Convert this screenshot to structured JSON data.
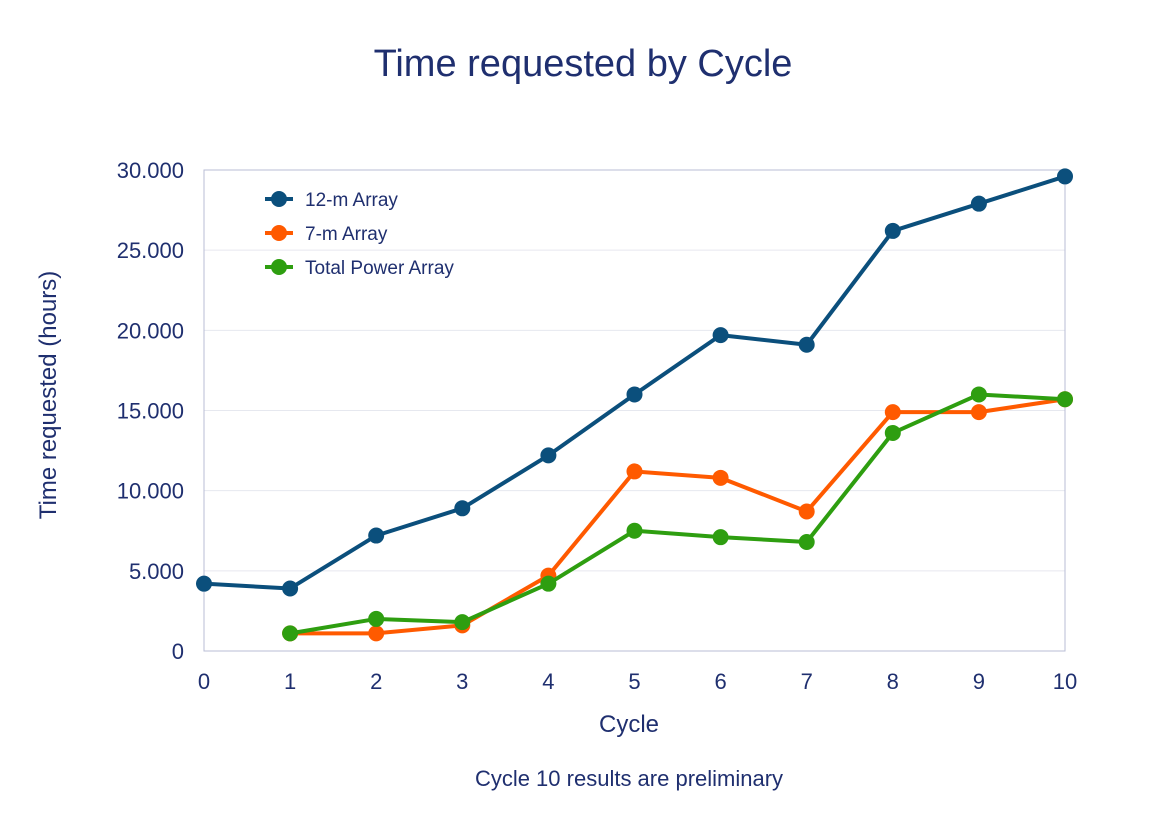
{
  "chart_data": {
    "type": "line",
    "title": "Time requested by Cycle",
    "xlabel": "Cycle",
    "ylabel": "Time requested (hours)",
    "footnote": "Cycle 10 results are preliminary",
    "x": [
      0,
      1,
      2,
      3,
      4,
      5,
      6,
      7,
      8,
      9,
      10
    ],
    "x_ticks": [
      "0",
      "1",
      "2",
      "3",
      "4",
      "5",
      "6",
      "7",
      "8",
      "9",
      "10"
    ],
    "xlim": [
      0,
      10
    ],
    "ylim": [
      0,
      30000
    ],
    "y_ticks": [
      0,
      5000,
      10000,
      15000,
      20000,
      25000,
      30000
    ],
    "y_tick_labels": [
      "0",
      "5.000",
      "10.000",
      "15.000",
      "20.000",
      "25.000",
      "30.000"
    ],
    "grid": true,
    "legend_position": "top-left",
    "series": [
      {
        "name": "12-m Array",
        "color": "#0b4f7c",
        "values": [
          4200,
          3900,
          7200,
          8900,
          12200,
          16000,
          19700,
          19100,
          26200,
          27900,
          29600
        ]
      },
      {
        "name": "7-m Array",
        "color": "#ff5a00",
        "values": [
          null,
          1100,
          1100,
          1600,
          4700,
          11200,
          10800,
          8700,
          14900,
          14900,
          15700
        ]
      },
      {
        "name": "Total Power Array",
        "color": "#2e9e10",
        "values": [
          null,
          1100,
          2000,
          1800,
          4200,
          7500,
          7100,
          6800,
          13600,
          16000,
          15700
        ]
      }
    ]
  }
}
